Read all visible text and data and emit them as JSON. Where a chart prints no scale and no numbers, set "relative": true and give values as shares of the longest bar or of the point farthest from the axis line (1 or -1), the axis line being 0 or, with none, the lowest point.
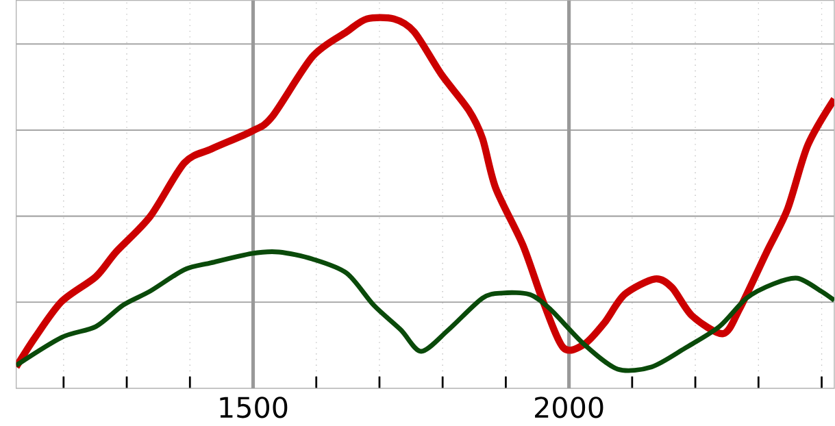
{
  "chart_data": {
    "type": "line",
    "relative": true,
    "grid": true,
    "xlim": [
      1125,
      2420
    ],
    "xticks": [
      {
        "value": 1200,
        "label": null
      },
      {
        "value": 1300,
        "label": null
      },
      {
        "value": 1400,
        "label": null
      },
      1500,
      {
        "value": 1600,
        "label": null
      },
      {
        "value": 1700,
        "label": null
      },
      {
        "value": 1800,
        "label": null
      },
      {
        "value": 1900,
        "label": null
      },
      2000,
      {
        "value": 2100,
        "label": null
      },
      {
        "value": 2200,
        "label": null
      },
      {
        "value": 2300,
        "label": null
      },
      {
        "value": 2400,
        "label": null
      }
    ],
    "series": [
      {
        "color": "#cc0000",
        "x": [
          1125,
          1155,
          1197,
          1251,
          1283,
          1337,
          1391,
          1434,
          1498,
          1530,
          1594,
          1648,
          1680,
          1723,
          1755,
          1798,
          1841,
          1863,
          1884,
          1927,
          1959,
          1991,
          2024,
          2056,
          2088,
          2136,
          2163,
          2195,
          2244,
          2270,
          2313,
          2346,
          2378,
          2420
        ],
        "values": [
          0.058,
          0.138,
          0.235,
          0.302,
          0.369,
          0.465,
          0.61,
          0.648,
          0.696,
          0.735,
          0.898,
          0.965,
          1,
          1,
          0.965,
          0.85,
          0.754,
          0.677,
          0.542,
          0.388,
          0.235,
          0.11,
          0.119,
          0.177,
          0.254,
          0.296,
          0.273,
          0.196,
          0.148,
          0.215,
          0.369,
          0.485,
          0.658,
          0.783
        ]
      },
      {
        "color": "#0a4a0a",
        "x": [
          1125,
          1197,
          1251,
          1294,
          1337,
          1391,
          1434,
          1498,
          1541,
          1594,
          1648,
          1691,
          1734,
          1766,
          1809,
          1863,
          1895,
          1938,
          1970,
          2024,
          2077,
          2131,
          2185,
          2238,
          2281,
          2324,
          2362,
          2399,
          2420
        ],
        "values": [
          0.062,
          0.138,
          0.167,
          0.225,
          0.263,
          0.321,
          0.34,
          0.365,
          0.369,
          0.35,
          0.312,
          0.225,
          0.158,
          0.1,
          0.158,
          0.244,
          0.258,
          0.254,
          0.215,
          0.119,
          0.052,
          0.058,
          0.11,
          0.167,
          0.244,
          0.283,
          0.298,
          0.263,
          0.238
        ]
      }
    ]
  }
}
